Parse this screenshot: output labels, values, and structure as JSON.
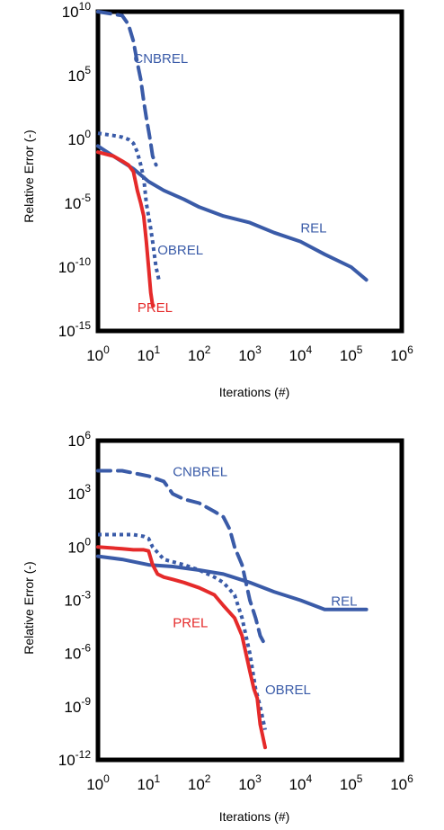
{
  "chart_data": [
    {
      "type": "line",
      "title": "",
      "xlabel": "Iterations (#)",
      "ylabel": "Relative Error (-)",
      "x_scale": "log",
      "y_scale": "log",
      "x_ticks": [
        {
          "base": "10",
          "exp": "0"
        },
        {
          "base": "10",
          "exp": "1"
        },
        {
          "base": "10",
          "exp": "2"
        },
        {
          "base": "10",
          "exp": "3"
        },
        {
          "base": "10",
          "exp": "4"
        },
        {
          "base": "10",
          "exp": "5"
        },
        {
          "base": "10",
          "exp": "6"
        }
      ],
      "y_ticks": [
        {
          "base": "10",
          "exp": "10"
        },
        {
          "base": "10",
          "exp": "5"
        },
        {
          "base": "10",
          "exp": "0"
        },
        {
          "base": "10",
          "exp": "-5"
        },
        {
          "base": "10",
          "exp": "-10"
        },
        {
          "base": "10",
          "exp": "-15"
        }
      ],
      "xlim": [
        1,
        1000000
      ],
      "ylim": [
        1e-15,
        10000000000.0
      ],
      "grid": false,
      "legend": "none",
      "series": [
        {
          "name": "CNBREL",
          "color": "#3a5ba8",
          "style": "dashed",
          "x": [
            1,
            3,
            4,
            5,
            6,
            7,
            8,
            9,
            10,
            11,
            12,
            14
          ],
          "y": [
            10000000000.0,
            5000000000.0,
            1000000000.0,
            50000000.0,
            1000000.0,
            50000.0,
            1000,
            50,
            5,
            0.5,
            0.05,
            0.01
          ]
        },
        {
          "name": "OBREL",
          "color": "#3a5ba8",
          "style": "dotted",
          "x": [
            1,
            2,
            3,
            4,
            5,
            6,
            7,
            8,
            9,
            10,
            11,
            12,
            14,
            16
          ],
          "y": [
            3,
            2,
            1.5,
            1,
            0.5,
            0.1,
            0.01,
            0.001,
            1e-05,
            1e-06,
            1e-07,
            1e-08,
            1e-10,
            1e-11
          ]
        },
        {
          "name": "REL",
          "color": "#3a5ba8",
          "style": "solid",
          "x": [
            1,
            2,
            5,
            10,
            20,
            50,
            100,
            300,
            1000,
            3000,
            10000,
            30000,
            100000,
            200000
          ],
          "y": [
            0.3,
            0.05,
            0.005,
            0.0005,
            0.0001,
            2e-05,
            5e-06,
            1e-06,
            3e-07,
            5e-08,
            1e-08,
            1e-09,
            1e-10,
            1e-11
          ]
        },
        {
          "name": "PREL",
          "color": "#e52a2a",
          "style": "solid",
          "x": [
            1,
            2,
            3,
            4,
            5,
            6,
            7,
            8,
            9,
            10,
            11,
            12
          ],
          "y": [
            0.1,
            0.05,
            0.02,
            0.01,
            0.003,
            0.0001,
            1e-05,
            1e-06,
            1e-08,
            1e-10,
            1e-12,
            1e-13
          ]
        }
      ],
      "labels": [
        {
          "text": "CNBREL",
          "x": 5,
          "y": 1000000.0,
          "color": "#3a5ba8"
        },
        {
          "text": "REL",
          "x": 10000,
          "y": 5e-08,
          "color": "#3a5ba8"
        },
        {
          "text": "OBREL",
          "x": 15,
          "y": 1e-09,
          "color": "#3a5ba8"
        },
        {
          "text": "PREL",
          "x": 6,
          "y": 3e-14,
          "color": "#e52a2a"
        }
      ]
    },
    {
      "type": "line",
      "title": "",
      "xlabel": "Iterations (#)",
      "ylabel": "Relative Error (-)",
      "x_scale": "log",
      "y_scale": "log",
      "x_ticks": [
        {
          "base": "10",
          "exp": "0"
        },
        {
          "base": "10",
          "exp": "1"
        },
        {
          "base": "10",
          "exp": "2"
        },
        {
          "base": "10",
          "exp": "3"
        },
        {
          "base": "10",
          "exp": "4"
        },
        {
          "base": "10",
          "exp": "5"
        },
        {
          "base": "10",
          "exp": "6"
        }
      ],
      "y_ticks": [
        {
          "base": "10",
          "exp": "6"
        },
        {
          "base": "10",
          "exp": "3"
        },
        {
          "base": "10",
          "exp": "0"
        },
        {
          "base": "10",
          "exp": "-3"
        },
        {
          "base": "10",
          "exp": "-6"
        },
        {
          "base": "10",
          "exp": "-9"
        },
        {
          "base": "10",
          "exp": "-12"
        }
      ],
      "xlim": [
        1,
        1000000
      ],
      "ylim": [
        1e-12,
        1000000.0
      ],
      "grid": false,
      "legend": "none",
      "series": [
        {
          "name": "CNBREL",
          "color": "#3a5ba8",
          "style": "dashed",
          "x": [
            1,
            3,
            5,
            10,
            20,
            30,
            50,
            100,
            200,
            300,
            400,
            500,
            700,
            1000,
            1300,
            1600,
            2000
          ],
          "y": [
            20000,
            20000,
            15000,
            10000,
            5000,
            1000,
            500,
            300,
            100,
            50,
            10,
            1,
            0.1,
            0.001,
            0.0001,
            1e-05,
            3e-06
          ]
        },
        {
          "name": "OBREL",
          "color": "#3a5ba8",
          "style": "dotted",
          "x": [
            1,
            3,
            5,
            8,
            10,
            12,
            15,
            20,
            50,
            100,
            200,
            300,
            500,
            700,
            1000,
            1300,
            1600,
            2000
          ],
          "y": [
            5,
            5,
            5,
            4,
            3,
            1,
            0.5,
            0.2,
            0.1,
            0.05,
            0.02,
            0.01,
            0.002,
            0.0001,
            1e-06,
            1e-08,
            1e-09,
            5e-11
          ]
        },
        {
          "name": "REL",
          "color": "#3a5ba8",
          "style": "solid",
          "x": [
            1,
            3,
            10,
            30,
            100,
            300,
            1000,
            3000,
            10000,
            30000,
            50000,
            100000,
            200000
          ],
          "y": [
            0.3,
            0.2,
            0.1,
            0.08,
            0.05,
            0.03,
            0.01,
            0.003,
            0.001,
            0.0003,
            0.0003,
            0.0003,
            0.0003
          ]
        },
        {
          "name": "PREL",
          "color": "#e52a2a",
          "style": "solid",
          "x": [
            1,
            3,
            5,
            8,
            10,
            12,
            15,
            20,
            30,
            50,
            100,
            200,
            300,
            500,
            700,
            1000,
            1200,
            1400,
            1600,
            2000
          ],
          "y": [
            1,
            0.8,
            0.7,
            0.7,
            0.6,
            0.1,
            0.03,
            0.02,
            0.015,
            0.01,
            0.005,
            0.002,
            0.0005,
            0.0001,
            1e-05,
            1e-07,
            1e-08,
            3e-09,
            1e-10,
            5e-12
          ]
        }
      ],
      "labels": [
        {
          "text": "CNBREL",
          "x": 30,
          "y": 10000.0,
          "color": "#3a5ba8"
        },
        {
          "text": "REL",
          "x": 40000,
          "y": 0.0005,
          "color": "#3a5ba8"
        },
        {
          "text": "PREL",
          "x": 30,
          "y": 3e-05,
          "color": "#e52a2a"
        },
        {
          "text": "OBREL",
          "x": 2000,
          "y": 5e-09,
          "color": "#3a5ba8"
        }
      ]
    }
  ]
}
